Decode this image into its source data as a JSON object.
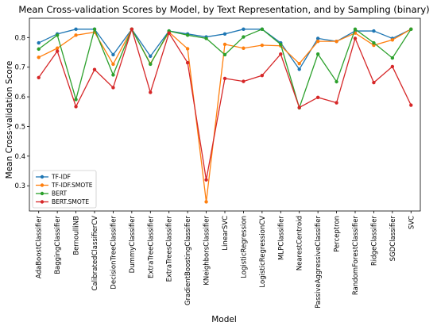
{
  "chart_data": {
    "type": "line",
    "title": "Mean Cross-validation Scores by Model, by Text Representation, and by Sampling (binary)",
    "xlabel": "Model",
    "ylabel": "Mean Cross-validation Score",
    "ylim": [
      0.215,
      0.865
    ],
    "yticks": [
      0.3,
      0.4,
      0.5,
      0.6,
      0.7,
      0.8
    ],
    "grid": false,
    "legend_position": "lower-left",
    "categories": [
      "AdaBoostClassifier",
      "BaggingClassifier",
      "BernoulliNB",
      "CalibratedClassifierCV",
      "DecisionTreeClassifier",
      "DummyClassifier",
      "ExtraTreeClassifier",
      "ExtraTreesClassifier",
      "GradientBoostingClassifier",
      "KNeighborsClassifier",
      "LinearSVC",
      "LogisticRegression",
      "LogisticRegressionCV",
      "MLPClassifier",
      "NearestCentroid",
      "PassiveAggressiveClassifier",
      "Perceptron",
      "RandomForestClassifier",
      "RidgeClassifier",
      "SGDClassifier",
      "SVC"
    ],
    "series": [
      {
        "name": "TF-IDF",
        "color": "#1f77b4",
        "values": [
          0.782,
          0.812,
          0.828,
          0.828,
          0.742,
          0.828,
          0.737,
          0.822,
          0.812,
          0.802,
          0.812,
          0.828,
          0.828,
          0.782,
          0.693,
          0.797,
          0.787,
          0.822,
          0.822,
          0.797,
          0.828
        ]
      },
      {
        "name": "TF-IDF.SMOTE",
        "color": "#ff7f0e",
        "values": [
          0.733,
          0.764,
          0.808,
          0.818,
          0.71,
          0.828,
          0.712,
          0.818,
          0.762,
          0.246,
          0.777,
          0.764,
          0.774,
          0.772,
          0.712,
          0.787,
          0.787,
          0.815,
          0.774,
          0.792,
          0.828
        ]
      },
      {
        "name": "BERT",
        "color": "#2ca02c",
        "values": [
          0.761,
          0.808,
          0.591,
          0.828,
          0.674,
          0.828,
          0.71,
          0.822,
          0.808,
          0.797,
          0.742,
          0.802,
          0.828,
          0.777,
          0.563,
          0.744,
          0.651,
          0.828,
          0.782,
          0.731,
          0.828
        ]
      },
      {
        "name": "BERT.SMOTE",
        "color": "#d62728",
        "values": [
          0.665,
          0.754,
          0.567,
          0.692,
          0.631,
          0.828,
          0.615,
          0.815,
          0.715,
          0.32,
          0.662,
          0.652,
          0.672,
          0.744,
          0.564,
          0.598,
          0.58,
          0.797,
          0.648,
          0.702,
          0.572
        ]
      }
    ]
  }
}
